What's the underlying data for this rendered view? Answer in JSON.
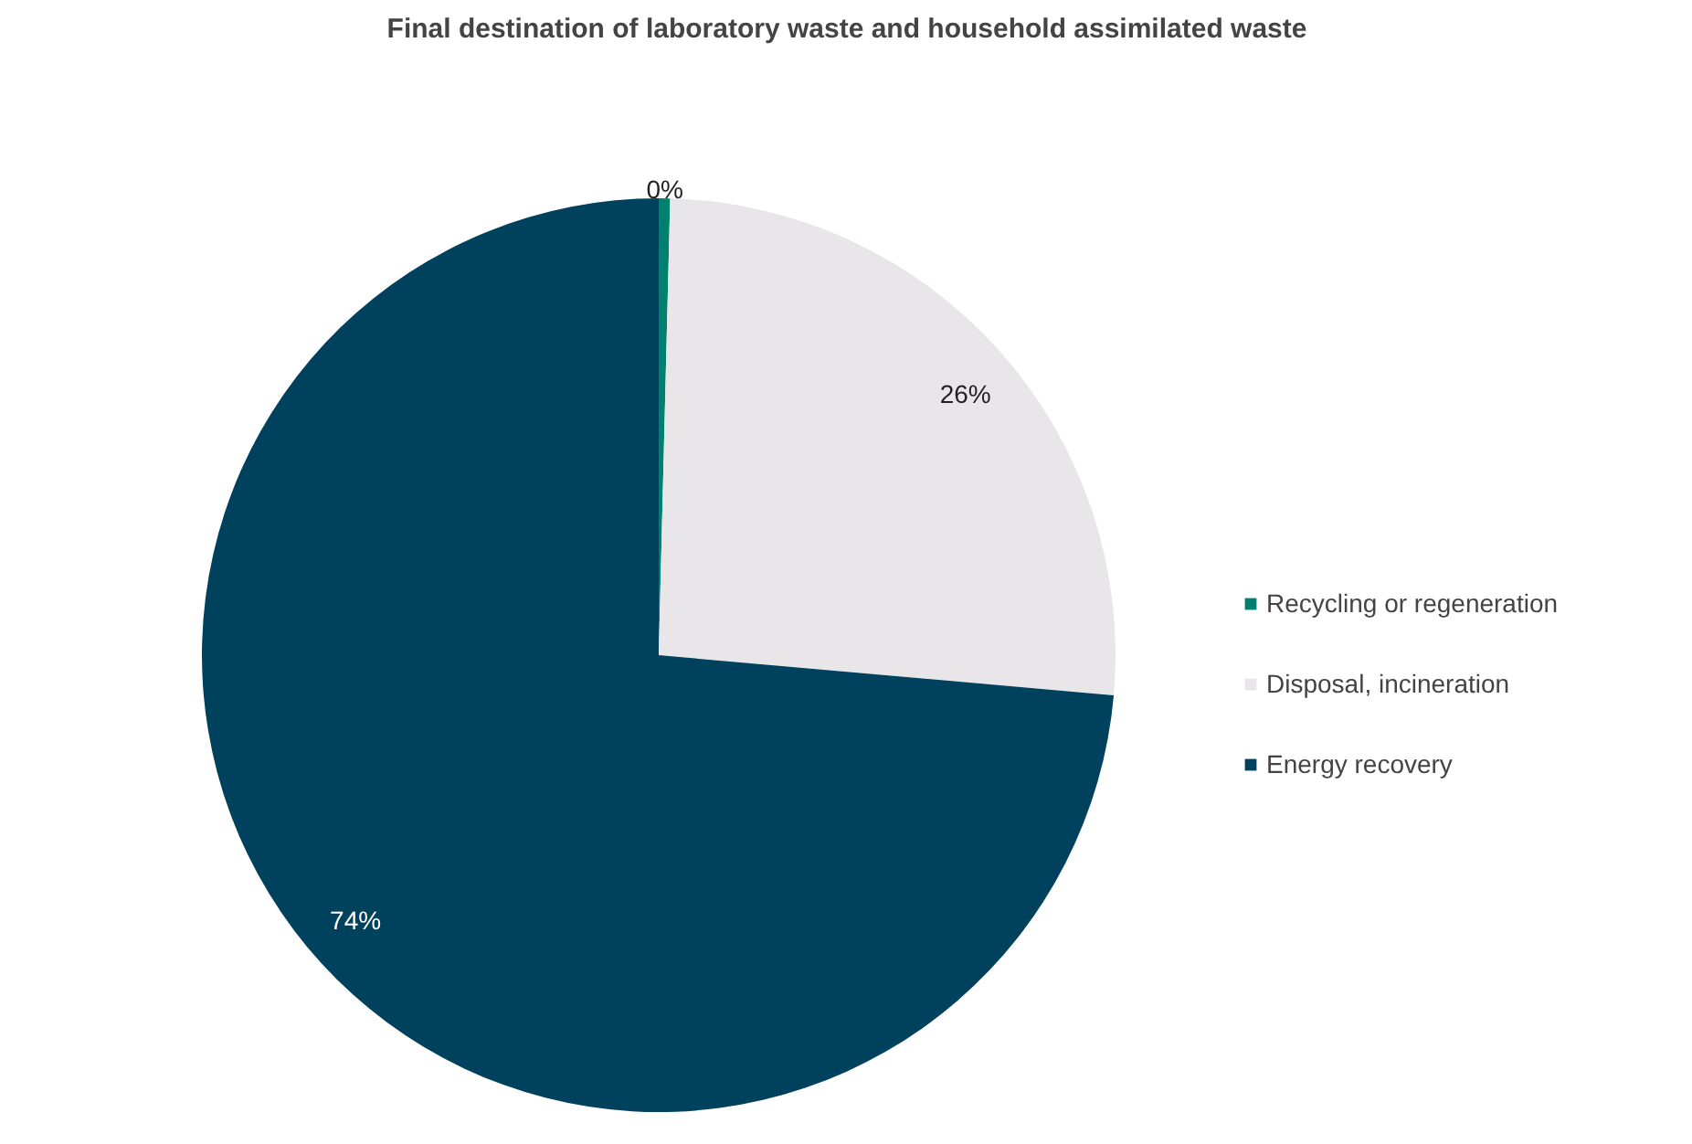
{
  "chart_data": {
    "type": "pie",
    "title": "Final destination of laboratory waste and household assimilated waste",
    "categories": [
      "Recycling or regeneration",
      "Disposal, incineration",
      "Energy recovery"
    ],
    "values": [
      0.4,
      26,
      73.6
    ],
    "value_labels": [
      "0%",
      "26%",
      "74%"
    ],
    "colors": [
      "#00806e",
      "#e8e6e9",
      "#00415e"
    ],
    "legend": "right"
  }
}
